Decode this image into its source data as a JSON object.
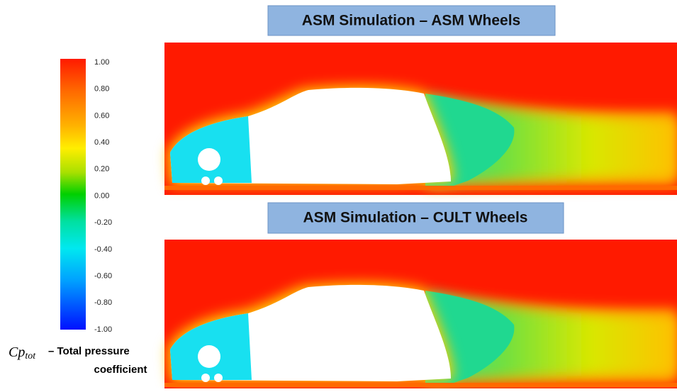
{
  "panels": [
    {
      "title": "ASM Simulation – ASM Wheels"
    },
    {
      "title": "ASM Simulation – CULT Wheels"
    }
  ],
  "colorbar": {
    "labels": [
      "1.00",
      "0.80",
      "0.60",
      "0.40",
      "0.20",
      "0.00",
      "-0.20",
      "-0.40",
      "-0.60",
      "-0.80",
      "-1.00"
    ],
    "symbol": "Cp",
    "subscript": "tot",
    "label_line1": "– Total pressure",
    "label_line2": "coefficient"
  }
}
